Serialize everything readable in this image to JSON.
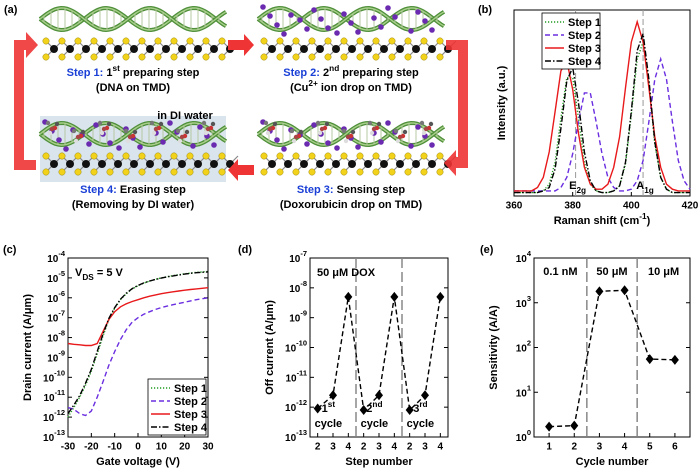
{
  "diagram": {
    "label": "(a)",
    "note": "in DI water",
    "steps": [
      {
        "name": "Step 1:",
        "title": [
          " 1",
          {
            "sup": "st"
          },
          " preparing step"
        ],
        "detail": "(DNA on TMD)"
      },
      {
        "name": "Step 2:",
        "title": [
          " 2",
          {
            "sup": "nd"
          },
          " preparing step"
        ],
        "detail": [
          "(Cu",
          {
            "sup": "2+"
          },
          " ion drop on TMD)"
        ]
      },
      {
        "name": "Step 3:",
        "title": " Sensing step",
        "detail": "(Doxorubicin drop on TMD)"
      },
      {
        "name": "Step 4:",
        "title": " Erasing step",
        "detail": "(Removing by DI water)"
      }
    ]
  },
  "chart_data": [
    {
      "type": "line",
      "panel": "(b)",
      "y_label": "Intensity (a.u.)",
      "x_label": [
        "Raman shift (cm",
        {
          "sup": "-1"
        },
        ")"
      ],
      "xlim": [
        360,
        420
      ],
      "xticks": [
        360,
        380,
        400,
        420
      ],
      "ylim": [
        0,
        1.1
      ],
      "legend": "upper-left",
      "reference_lines": [
        381,
        404
      ],
      "peak_labels": [
        [
          "E",
          {
            "sub": "2g"
          }
        ],
        [
          "A",
          {
            "sub": "1g"
          }
        ]
      ],
      "x": [
        360,
        362,
        364,
        366,
        368,
        370,
        372,
        374,
        376,
        378,
        380,
        382,
        384,
        386,
        388,
        390,
        392,
        394,
        396,
        398,
        400,
        402,
        404,
        406,
        408,
        410,
        412,
        414,
        416,
        418,
        420
      ],
      "series": [
        {
          "name": "Step 1",
          "color": "#1f9a1f",
          "line_style": "dotted",
          "values": [
            0.02,
            0.02,
            0.02,
            0.02,
            0.02,
            0.03,
            0.07,
            0.2,
            0.46,
            0.7,
            0.7,
            0.46,
            0.2,
            0.07,
            0.03,
            0.02,
            0.02,
            0.03,
            0.06,
            0.19,
            0.48,
            0.81,
            0.91,
            0.66,
            0.31,
            0.11,
            0.04,
            0.02,
            0.02,
            0.02,
            0.02
          ]
        },
        {
          "name": "Step 2",
          "color": "#6a2ee0",
          "line_style": "dashed",
          "values": [
            0.03,
            0.03,
            0.03,
            0.03,
            0.03,
            0.03,
            0.03,
            0.03,
            0.05,
            0.11,
            0.25,
            0.44,
            0.61,
            0.61,
            0.44,
            0.25,
            0.11,
            0.05,
            0.03,
            0.03,
            0.04,
            0.09,
            0.21,
            0.44,
            0.69,
            0.81,
            0.69,
            0.44,
            0.21,
            0.09,
            0.04
          ]
        },
        {
          "name": "Step 3",
          "color": "#e8191b",
          "line_style": "solid",
          "values": [
            0.03,
            0.03,
            0.03,
            0.03,
            0.05,
            0.11,
            0.26,
            0.5,
            0.74,
            0.8,
            0.63,
            0.37,
            0.17,
            0.07,
            0.04,
            0.04,
            0.07,
            0.17,
            0.35,
            0.64,
            0.91,
            1.03,
            0.91,
            0.64,
            0.35,
            0.17,
            0.07,
            0.04,
            0.03,
            0.03,
            0.03
          ]
        },
        {
          "name": "Step 4",
          "color": "#000000",
          "line_style": "dashdot",
          "values": [
            0.02,
            0.02,
            0.02,
            0.02,
            0.02,
            0.03,
            0.05,
            0.16,
            0.4,
            0.68,
            0.76,
            0.55,
            0.26,
            0.09,
            0.03,
            0.02,
            0.02,
            0.03,
            0.06,
            0.2,
            0.5,
            0.86,
            0.96,
            0.69,
            0.32,
            0.11,
            0.04,
            0.02,
            0.02,
            0.02,
            0.02
          ]
        }
      ]
    },
    {
      "type": "line",
      "panel": "(c)",
      "y_label": "Drain current (A/μm)",
      "x_label": "Gate voltage (V)",
      "log_y": true,
      "annotation": [
        "V",
        {
          "sub": "DS"
        },
        " = 5 V"
      ],
      "legend": "lower-right",
      "xlim": [
        -30,
        30
      ],
      "xticks": [
        -30,
        -20,
        -10,
        0,
        10,
        20,
        30
      ],
      "ylim": [
        1e-13,
        0.0001
      ],
      "yticks": [
        {
          "value": 1e-13,
          "label": [
            "10",
            {
              "sup": "-13"
            }
          ]
        },
        {
          "value": 1e-12,
          "label": [
            "10",
            {
              "sup": "-12"
            }
          ]
        },
        {
          "value": 1e-11,
          "label": [
            "10",
            {
              "sup": "-11"
            }
          ]
        },
        {
          "value": 1e-10,
          "label": [
            "10",
            {
              "sup": "-10"
            }
          ]
        },
        {
          "value": 1e-09,
          "label": [
            "10",
            {
              "sup": "-9"
            }
          ]
        },
        {
          "value": 1e-08,
          "label": [
            "10",
            {
              "sup": "-8"
            }
          ]
        },
        {
          "value": 1e-07,
          "label": [
            "10",
            {
              "sup": "-7"
            }
          ]
        },
        {
          "value": 1e-06,
          "label": [
            "10",
            {
              "sup": "-6"
            }
          ]
        },
        {
          "value": 1e-05,
          "label": [
            "10",
            {
              "sup": "-5"
            }
          ]
        },
        {
          "value": 0.0001,
          "label": [
            "10",
            {
              "sup": "-4"
            }
          ]
        }
      ],
      "x": [
        -30,
        -27.5,
        -25,
        -22.5,
        -20,
        -17.5,
        -15,
        -12.5,
        -10,
        -7.5,
        -5,
        -2.5,
        0,
        2.5,
        5,
        7.5,
        10,
        12.5,
        15,
        17.5,
        20,
        22.5,
        25,
        27.5,
        30
      ],
      "series": [
        {
          "name": "Step 1",
          "color": "#1f9a1f",
          "line_style": "dotted",
          "values": [
            1e-12,
            3e-12,
            1e-11,
            4e-11,
            2e-10,
            1.5e-09,
            1.2e-08,
            8e-08,
            3e-07,
            8e-07,
            1.6e-06,
            2.8e-06,
            4e-06,
            5.5e-06,
            7e-06,
            8.5e-06,
            1e-05,
            1.15e-05,
            1.3e-05,
            1.45e-05,
            1.6e-05,
            1.75e-05,
            1.9e-05,
            2e-05,
            2.1e-05
          ]
        },
        {
          "name": "Step 2",
          "color": "#6a2ee0",
          "line_style": "dashed",
          "values": [
            3e-12,
            2.5e-12,
            1.5e-12,
            1.2e-12,
            2e-12,
            1e-11,
            6e-11,
            4e-10,
            2e-09,
            8e-09,
            2.5e-08,
            6e-08,
            1e-07,
            1.5e-07,
            2e-07,
            2.6e-07,
            3.2e-07,
            3.8e-07,
            4.5e-07,
            5.2e-07,
            6e-07,
            7e-07,
            8e-07,
            9e-07,
            1e-06
          ]
        },
        {
          "name": "Step 3",
          "color": "#e8191b",
          "line_style": "solid",
          "values": [
            5e-09,
            4.6e-09,
            4.3e-09,
            4e-09,
            4e-09,
            5e-09,
            2e-08,
            8e-08,
            2e-07,
            3.5e-07,
            5e-07,
            6.5e-07,
            8e-07,
            1e-06,
            1.2e-06,
            1.4e-06,
            1.6e-06,
            1.8e-06,
            2e-06,
            2.2e-06,
            2.4e-06,
            2.6e-06,
            2.8e-06,
            3e-06,
            3.2e-06
          ]
        },
        {
          "name": "Step 4",
          "color": "#000000",
          "line_style": "dashdot",
          "values": [
            1.5e-12,
            4e-12,
            1.2e-11,
            5e-11,
            2.5e-10,
            2e-09,
            1.5e-08,
            9e-08,
            3.2e-07,
            8.5e-07,
            1.7e-06,
            2.9e-06,
            4.2e-06,
            5.6e-06,
            7e-06,
            8.4e-06,
            9.8e-06,
            1.12e-05,
            1.26e-05,
            1.4e-05,
            1.55e-05,
            1.7e-05,
            1.82e-05,
            1.92e-05,
            2e-05
          ]
        }
      ]
    },
    {
      "type": "line",
      "panel": "(d)",
      "y_label": "Off current (A/μm)",
      "x_label": "Step number",
      "log_y": true,
      "annotation": "50 μM DOX",
      "color": "#000000",
      "line_style": "dashed",
      "marker": "diamond",
      "ylim": [
        1e-13,
        1e-07
      ],
      "yticks": [
        {
          "value": 1e-13,
          "label": [
            "10",
            {
              "sup": "-13"
            }
          ]
        },
        {
          "value": 1e-12,
          "label": [
            "10",
            {
              "sup": "-12"
            }
          ]
        },
        {
          "value": 1e-11,
          "label": [
            "10",
            {
              "sup": "-11"
            }
          ]
        },
        {
          "value": 1e-10,
          "label": [
            "10",
            {
              "sup": "-10"
            }
          ]
        },
        {
          "value": 1e-09,
          "label": [
            "10",
            {
              "sup": "-9"
            }
          ]
        },
        {
          "value": 1e-08,
          "label": [
            "10",
            {
              "sup": "-8"
            }
          ]
        },
        {
          "value": 1e-07,
          "label": [
            "10",
            {
              "sup": "-7"
            }
          ]
        }
      ],
      "categories": [
        "2",
        "3",
        "4",
        "2",
        "3",
        "4",
        "2",
        "3",
        "4"
      ],
      "values": [
        9e-13,
        2.5e-12,
        5e-09,
        8e-13,
        2.5e-12,
        5e-09,
        8e-13,
        2.5e-12,
        5e-09
      ],
      "cycle_labels": [
        {
          "ordinal": [
            "1",
            {
              "sup": "st"
            }
          ],
          "word": "cycle"
        },
        {
          "ordinal": [
            "2",
            {
              "sup": "nd"
            }
          ],
          "word": "cycle"
        },
        {
          "ordinal": [
            "3",
            {
              "sup": "rd"
            }
          ],
          "word": "cycle"
        }
      ]
    },
    {
      "type": "line",
      "panel": "(e)",
      "y_label": "Sensitivity (A/A)",
      "x_label": "Cycle number",
      "log_y": true,
      "color": "#000000",
      "line_style": "dashed",
      "marker": "diamond",
      "xlim": [
        0.4,
        6.6
      ],
      "xticks": [
        1,
        2,
        3,
        4,
        5,
        6
      ],
      "ylim": [
        1,
        10000
      ],
      "yticks": [
        {
          "value": 1,
          "label": [
            "10",
            {
              "sup": "0"
            }
          ]
        },
        {
          "value": 10,
          "label": [
            "10",
            {
              "sup": "1"
            }
          ]
        },
        {
          "value": 100,
          "label": [
            "10",
            {
              "sup": "2"
            }
          ]
        },
        {
          "value": 1000,
          "label": [
            "10",
            {
              "sup": "3"
            }
          ]
        },
        {
          "value": 10000,
          "label": [
            "10",
            {
              "sup": "4"
            }
          ]
        }
      ],
      "x": [
        1,
        2,
        3,
        4,
        5,
        6
      ],
      "values": [
        1.7,
        1.8,
        1800,
        1900,
        55,
        53
      ],
      "separators": [
        2.5,
        4.5
      ],
      "region_labels": [
        "0.1 nM",
        "50 μM",
        "10 μM"
      ]
    }
  ]
}
